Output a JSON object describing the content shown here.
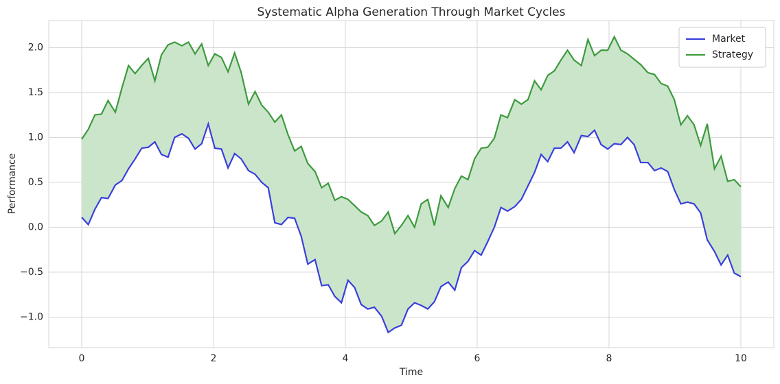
{
  "chart_data": {
    "type": "line",
    "title": "Systematic Alpha Generation Through Market Cycles",
    "xlabel": "Time",
    "ylabel": "Performance",
    "x": [
      0,
      0.1,
      0.2,
      0.3,
      0.4,
      0.51,
      0.61,
      0.71,
      0.81,
      0.91,
      1.01,
      1.11,
      1.21,
      1.31,
      1.41,
      1.52,
      1.62,
      1.72,
      1.82,
      1.92,
      2.02,
      2.12,
      2.22,
      2.32,
      2.42,
      2.53,
      2.63,
      2.73,
      2.83,
      2.93,
      3.03,
      3.13,
      3.23,
      3.33,
      3.43,
      3.54,
      3.64,
      3.74,
      3.84,
      3.94,
      4.04,
      4.14,
      4.24,
      4.34,
      4.44,
      4.55,
      4.65,
      4.75,
      4.85,
      4.95,
      5.05,
      5.15,
      5.25,
      5.35,
      5.45,
      5.56,
      5.66,
      5.76,
      5.86,
      5.96,
      6.06,
      6.16,
      6.26,
      6.36,
      6.46,
      6.57,
      6.67,
      6.77,
      6.87,
      6.97,
      7.07,
      7.17,
      7.27,
      7.37,
      7.47,
      7.58,
      7.68,
      7.78,
      7.88,
      7.98,
      8.08,
      8.18,
      8.28,
      8.38,
      8.48,
      8.59,
      8.69,
      8.79,
      8.89,
      8.99,
      9.09,
      9.19,
      9.29,
      9.39,
      9.49,
      9.6,
      9.7,
      9.8,
      9.9,
      10
    ],
    "series": [
      {
        "name": "Market",
        "color": "#3a3fdc",
        "values": [
          0.11,
          0.03,
          0.2,
          0.33,
          0.32,
          0.47,
          0.52,
          0.65,
          0.76,
          0.88,
          0.89,
          0.95,
          0.81,
          0.78,
          1.0,
          1.04,
          0.99,
          0.87,
          0.93,
          1.15,
          0.88,
          0.87,
          0.66,
          0.82,
          0.76,
          0.63,
          0.59,
          0.5,
          0.44,
          0.05,
          0.03,
          0.11,
          0.1,
          -0.1,
          -0.41,
          -0.36,
          -0.65,
          -0.64,
          -0.77,
          -0.84,
          -0.59,
          -0.67,
          -0.86,
          -0.91,
          -0.89,
          -0.99,
          -1.17,
          -1.12,
          -1.09,
          -0.91,
          -0.84,
          -0.87,
          -0.91,
          -0.83,
          -0.66,
          -0.61,
          -0.7,
          -0.45,
          -0.38,
          -0.26,
          -0.31,
          -0.16,
          0.0,
          0.22,
          0.18,
          0.23,
          0.31,
          0.46,
          0.61,
          0.81,
          0.73,
          0.88,
          0.88,
          0.95,
          0.83,
          1.02,
          1.01,
          1.08,
          0.92,
          0.87,
          0.93,
          0.92,
          1.0,
          0.92,
          0.72,
          0.72,
          0.63,
          0.66,
          0.62,
          0.42,
          0.26,
          0.28,
          0.26,
          0.16,
          -0.14,
          -0.27,
          -0.42,
          -0.31,
          -0.51,
          -0.55
        ]
      },
      {
        "name": "Strategy",
        "color": "#3d9a3d",
        "values": [
          0.98,
          1.09,
          1.25,
          1.26,
          1.41,
          1.28,
          1.55,
          1.8,
          1.71,
          1.8,
          1.88,
          1.63,
          1.92,
          2.03,
          2.06,
          2.02,
          2.06,
          1.93,
          2.04,
          1.8,
          1.93,
          1.89,
          1.73,
          1.94,
          1.72,
          1.37,
          1.51,
          1.36,
          1.28,
          1.17,
          1.25,
          1.03,
          0.85,
          0.9,
          0.71,
          0.62,
          0.44,
          0.49,
          0.3,
          0.34,
          0.31,
          0.24,
          0.17,
          0.13,
          0.02,
          0.07,
          0.17,
          -0.07,
          0.02,
          0.13,
          0.0,
          0.26,
          0.31,
          0.02,
          0.35,
          0.22,
          0.43,
          0.57,
          0.53,
          0.76,
          0.88,
          0.89,
          0.99,
          1.25,
          1.22,
          1.42,
          1.37,
          1.42,
          1.63,
          1.53,
          1.69,
          1.74,
          1.86,
          1.97,
          1.86,
          1.8,
          2.09,
          1.91,
          1.97,
          1.97,
          2.12,
          1.97,
          1.93,
          1.87,
          1.81,
          1.72,
          1.7,
          1.6,
          1.57,
          1.42,
          1.14,
          1.24,
          1.14,
          0.91,
          1.15,
          0.65,
          0.79,
          0.51,
          0.53,
          0.45
        ]
      }
    ],
    "fill_between_color": "#cbe5cb",
    "xlim": [
      -0.5,
      10.5
    ],
    "xticks": [
      0,
      2,
      4,
      6,
      8,
      10
    ],
    "ylim": [
      -1.34,
      2.3
    ],
    "yticks": [
      {
        "value": -1,
        "label": "−1.0"
      },
      {
        "value": -0.5,
        "label": "−0.5"
      },
      {
        "value": 0,
        "label": "0.0"
      },
      0.5,
      {
        "value": 1,
        "label": "1.0"
      },
      1.5,
      {
        "value": 2,
        "label": "2.0"
      }
    ],
    "grid": true,
    "legend": "upper right"
  }
}
